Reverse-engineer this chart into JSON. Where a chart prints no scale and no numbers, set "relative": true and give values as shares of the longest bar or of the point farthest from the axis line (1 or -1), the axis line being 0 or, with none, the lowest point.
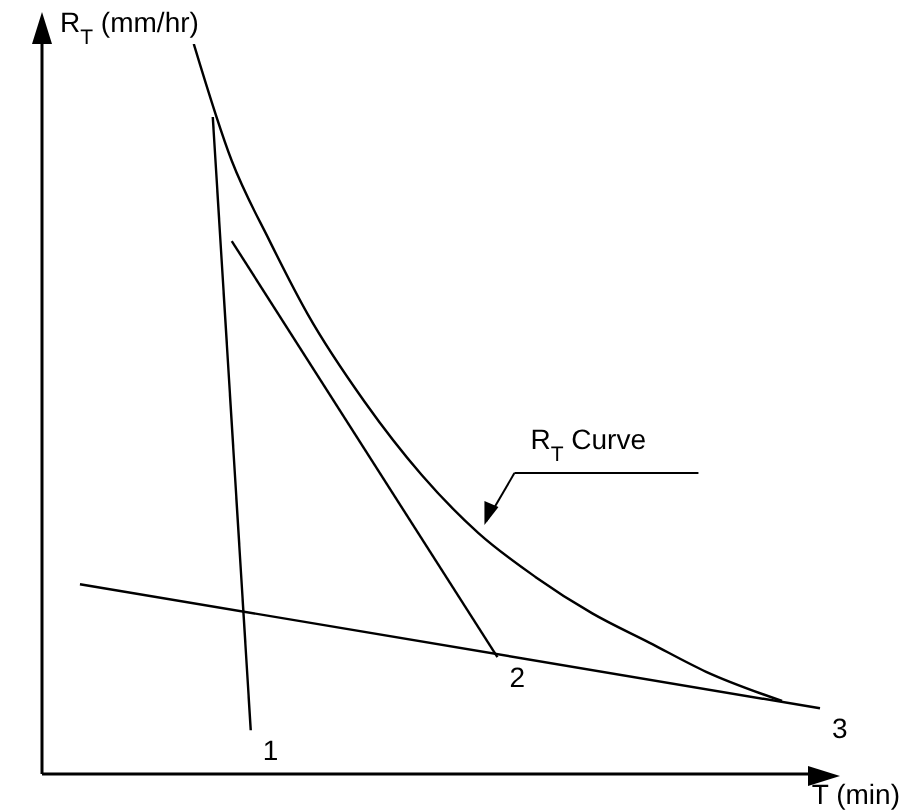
{
  "chart_data": {
    "type": "line",
    "relative": true,
    "xlabel": "T (min)",
    "ylabel": "R$_{T}$ (mm/hr)",
    "categories": [
      null,
      null,
      null,
      null,
      null,
      null,
      null,
      null,
      null,
      null,
      null,
      null,
      null,
      null,
      null,
      null,
      null,
      null,
      null,
      null,
      null,
      null,
      null,
      null,
      null,
      null,
      null,
      null,
      null,
      null,
      null,
      null,
      null,
      null,
      null,
      null,
      null,
      null,
      null,
      null,
      null,
      null
    ],
    "series": [
      {
        "name": "R$_{T}$ Curve",
        "color": "#000000",
        "values": [
          null,
          null,
          null,
          null,
          null,
          null,
          null,
          null,
          1.0,
          null,
          0.84,
          null,
          0.73,
          null,
          0.63,
          null,
          null,
          0.51,
          null,
          null,
          0.41,
          null,
          null,
          0.33,
          null,
          null,
          0.27,
          null,
          null,
          0.22,
          null,
          null,
          0.18,
          null,
          null,
          0.14,
          null,
          null,
          null,
          0.1,
          null,
          null
        ]
      },
      {
        "name": "1",
        "color": "#000000",
        "values": [
          null,
          null,
          null,
          null,
          null,
          null,
          null,
          null,
          null,
          0.9,
          null,
          0.06,
          null,
          null,
          null,
          null,
          null,
          null,
          null,
          null,
          null,
          null,
          null,
          null,
          null,
          null,
          null,
          null,
          null,
          null,
          null,
          null,
          null,
          null,
          null,
          null,
          null,
          null,
          null,
          null,
          null,
          null
        ]
      },
      {
        "name": "2",
        "color": "#000000",
        "values": [
          null,
          null,
          null,
          null,
          null,
          null,
          null,
          null,
          null,
          null,
          0.73,
          null,
          null,
          null,
          null,
          null,
          null,
          null,
          null,
          null,
          null,
          null,
          null,
          null,
          0.16,
          null,
          null,
          null,
          null,
          null,
          null,
          null,
          null,
          null,
          null,
          null,
          null,
          null,
          null,
          null,
          null,
          null
        ]
      },
      {
        "name": "3",
        "color": "#000000",
        "values": [
          null,
          null,
          0.26,
          null,
          null,
          null,
          null,
          null,
          null,
          null,
          null,
          null,
          null,
          null,
          null,
          null,
          null,
          null,
          null,
          null,
          null,
          null,
          null,
          null,
          null,
          null,
          null,
          null,
          null,
          null,
          null,
          null,
          null,
          null,
          null,
          null,
          null,
          null,
          null,
          null,
          null,
          0.09
        ]
      }
    ],
    "legend": false,
    "grid": false,
    "marker": "none",
    "line_style": "solid"
  }
}
